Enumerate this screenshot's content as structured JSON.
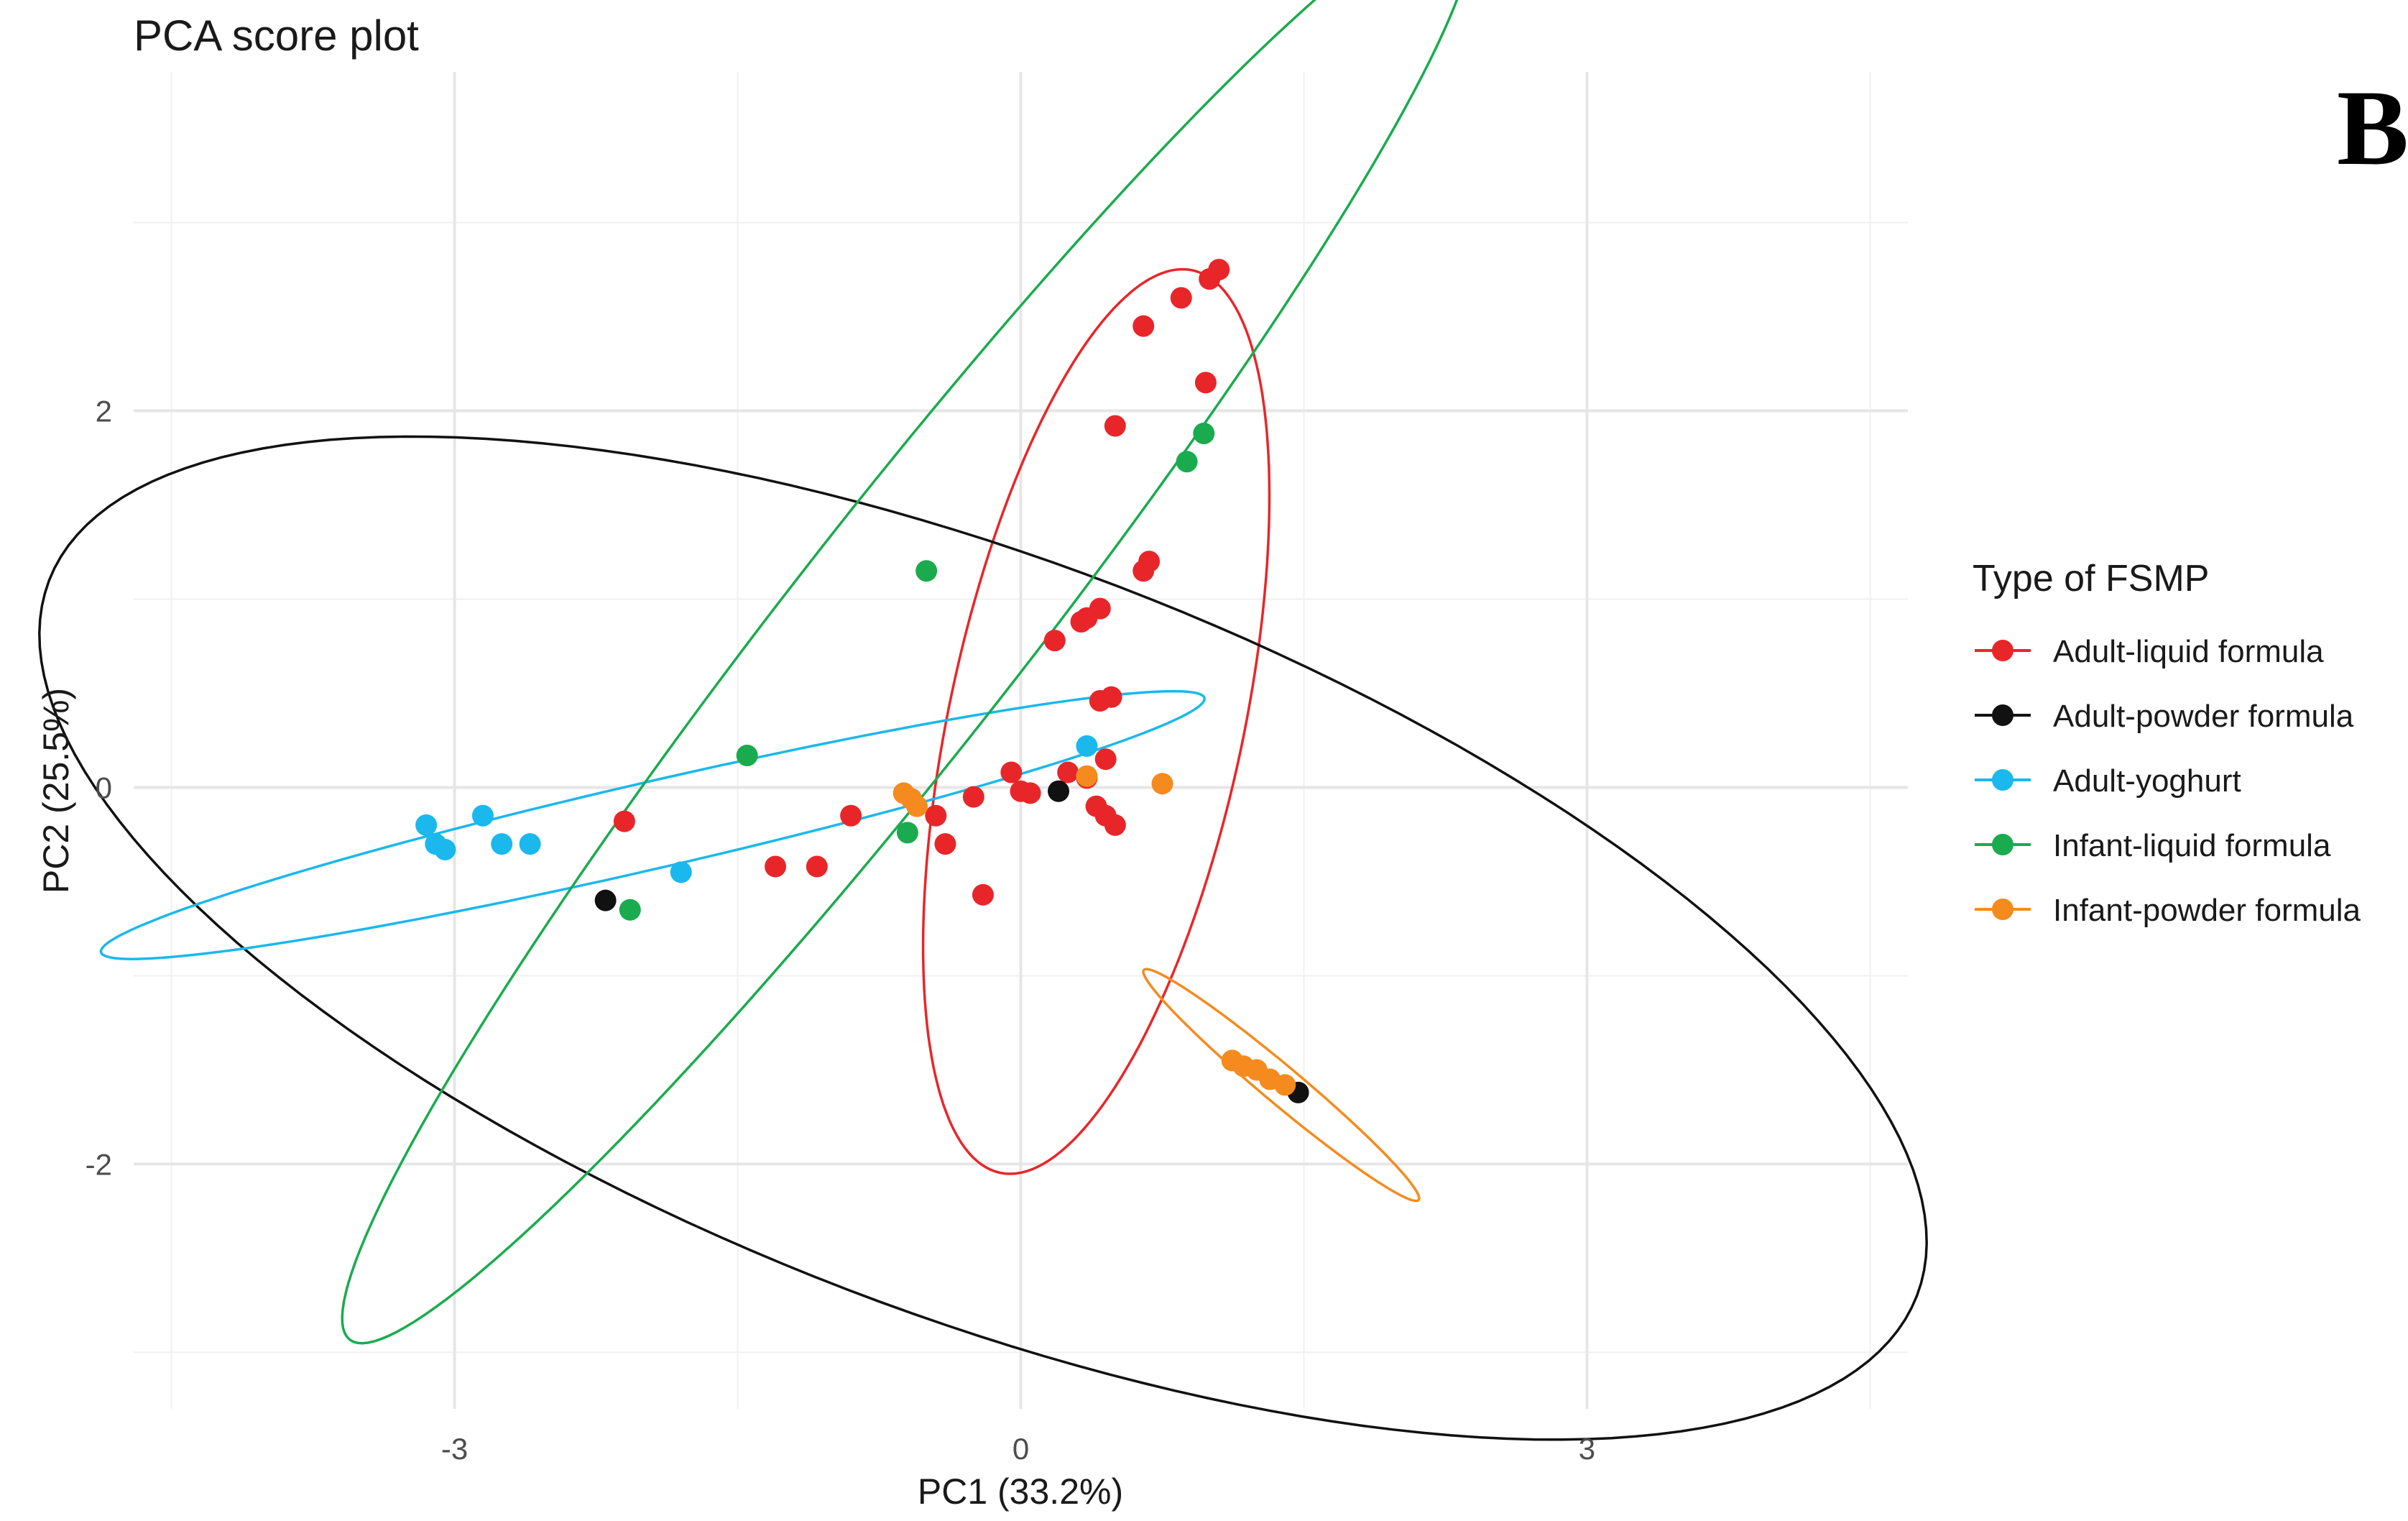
{
  "chart_data": {
    "type": "scatter",
    "title": "PCA score plot",
    "panel_label": "B",
    "xlabel": "PC1 (33.2%)",
    "ylabel": "PC2 (25.5%)",
    "xlim": [
      -4.7,
      4.7
    ],
    "ylim": [
      -3.3,
      3.8
    ],
    "x_ticks": [
      -3,
      0,
      3
    ],
    "x_tick_labels": [
      "-3",
      "0",
      "3"
    ],
    "y_ticks": [
      -2,
      0,
      2
    ],
    "y_tick_labels": [
      "-2",
      "0",
      "2"
    ],
    "x_minor": [
      -4.5,
      -1.5,
      1.5,
      4.5
    ],
    "y_minor": [
      -3,
      -1,
      1,
      3
    ],
    "grid": true,
    "legend_title": "Type of FSMP",
    "legend_position": "right",
    "series": [
      {
        "name": "Adult-liquid formula",
        "color": "#e8262a",
        "points": [
          [
            1.05,
            2.75
          ],
          [
            1.0,
            2.7
          ],
          [
            0.85,
            2.6
          ],
          [
            0.65,
            2.45
          ],
          [
            0.98,
            2.15
          ],
          [
            0.5,
            1.92
          ],
          [
            0.68,
            1.2
          ],
          [
            0.65,
            1.15
          ],
          [
            0.42,
            0.95
          ],
          [
            0.35,
            0.9
          ],
          [
            0.32,
            0.88
          ],
          [
            0.18,
            0.78
          ],
          [
            0.48,
            0.48
          ],
          [
            0.42,
            0.46
          ],
          [
            0.45,
            0.15
          ],
          [
            -0.05,
            0.08
          ],
          [
            0.25,
            0.08
          ],
          [
            0.35,
            0.05
          ],
          [
            0.0,
            -0.02
          ],
          [
            0.05,
            -0.03
          ],
          [
            -0.25,
            -0.05
          ],
          [
            0.4,
            -0.1
          ],
          [
            0.45,
            -0.15
          ],
          [
            0.5,
            -0.2
          ],
          [
            -0.45,
            -0.15
          ],
          [
            -0.4,
            -0.3
          ],
          [
            -0.9,
            -0.15
          ],
          [
            -2.1,
            -0.18
          ],
          [
            -1.3,
            -0.42
          ],
          [
            -1.08,
            -0.42
          ],
          [
            -0.2,
            -0.57
          ]
        ],
        "ellipse": {
          "cx": 0.4,
          "cy": 0.35,
          "rx": 2.45,
          "ry": 0.78,
          "angle_deg": 78
        }
      },
      {
        "name": "Adult-powder formula",
        "color": "#111111",
        "points": [
          [
            0.2,
            -0.02
          ],
          [
            -2.2,
            -0.6
          ],
          [
            1.47,
            -1.62
          ]
        ],
        "ellipse": {
          "cx": -0.2,
          "cy": -0.8,
          "rx": 5.3,
          "ry": 2.0,
          "angle_deg": -21
        }
      },
      {
        "name": "Adult-yoghurt",
        "color": "#1ab8ec",
        "points": [
          [
            0.35,
            0.22
          ],
          [
            -2.85,
            -0.15
          ],
          [
            -3.15,
            -0.2
          ],
          [
            -3.1,
            -0.3
          ],
          [
            -3.05,
            -0.33
          ],
          [
            -2.75,
            -0.3
          ],
          [
            -2.6,
            -0.3
          ],
          [
            -1.8,
            -0.45
          ]
        ],
        "ellipse": {
          "cx": -1.95,
          "cy": -0.2,
          "rx": 3.0,
          "ry": 0.23,
          "angle_deg": 13
        }
      },
      {
        "name": "Infant-liquid formula",
        "color": "#1aab4e",
        "points": [
          [
            0.97,
            1.88
          ],
          [
            0.88,
            1.73
          ],
          [
            -0.5,
            1.15
          ],
          [
            -1.45,
            0.17
          ],
          [
            -0.6,
            -0.24
          ],
          [
            -2.07,
            -0.65
          ]
        ],
        "ellipse": {
          "cx": -0.6,
          "cy": 0.85,
          "rx": 4.8,
          "ry": 0.62,
          "angle_deg": 52
        }
      },
      {
        "name": "Infant-powder formula",
        "color": "#f58b1f",
        "points": [
          [
            -0.62,
            -0.03
          ],
          [
            -0.58,
            -0.06
          ],
          [
            -0.55,
            -0.1
          ],
          [
            0.35,
            0.06
          ],
          [
            0.75,
            0.02
          ],
          [
            1.12,
            -1.45
          ],
          [
            1.18,
            -1.48
          ],
          [
            1.25,
            -1.5
          ],
          [
            1.32,
            -1.55
          ],
          [
            1.4,
            -1.58
          ]
        ],
        "ellipse": {
          "cx": 1.38,
          "cy": -1.58,
          "rx": 0.95,
          "ry": 0.1,
          "angle_deg": -40
        }
      }
    ]
  }
}
